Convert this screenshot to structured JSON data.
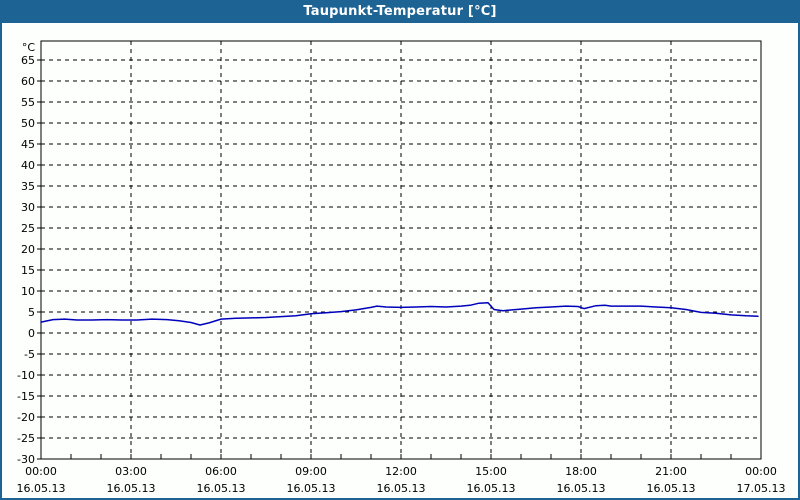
{
  "window": {
    "title": "Taupunkt-Temperatur [°C]"
  },
  "colors": {
    "header_bg": "#1d6394",
    "header_text": "#ffffff",
    "page_bg": "#fcfffc",
    "grid": "#000000",
    "line": "#0000bb"
  },
  "chart_data": {
    "type": "line",
    "title": "Taupunkt-Temperatur [°C]",
    "xlabel": "",
    "ylabel": "°C",
    "ylim": [
      -30,
      65
    ],
    "y_tick_step": 5,
    "y_ticks": [
      65,
      60,
      55,
      50,
      45,
      40,
      35,
      30,
      25,
      20,
      15,
      10,
      5,
      0,
      -5,
      -10,
      -15,
      -20,
      -25,
      -30
    ],
    "x_range_hours": [
      0,
      24
    ],
    "x_minor_step_hours": 1,
    "grid": "dashed",
    "legend_position": "none",
    "x_major_ticks": [
      {
        "hour": 0,
        "time": "00:00",
        "date": "16.05.13"
      },
      {
        "hour": 3,
        "time": "03:00",
        "date": "16.05.13"
      },
      {
        "hour": 6,
        "time": "06:00",
        "date": "16.05.13"
      },
      {
        "hour": 9,
        "time": "09:00",
        "date": "16.05.13"
      },
      {
        "hour": 12,
        "time": "12:00",
        "date": "16.05.13"
      },
      {
        "hour": 15,
        "time": "15:00",
        "date": "16.05.13"
      },
      {
        "hour": 18,
        "time": "18:00",
        "date": "16.05.13"
      },
      {
        "hour": 21,
        "time": "21:00",
        "date": "16.05.13"
      },
      {
        "hour": 24,
        "time": "00:00",
        "date": "17.05.13"
      }
    ],
    "series": [
      {
        "name": "Taupunkt-Temperatur",
        "unit": "°C",
        "color": "#0000bb",
        "points_hour_value": [
          [
            0.0,
            2.6
          ],
          [
            0.4,
            3.2
          ],
          [
            0.8,
            3.3
          ],
          [
            1.2,
            3.1
          ],
          [
            1.7,
            3.1
          ],
          [
            2.2,
            3.2
          ],
          [
            2.7,
            3.1
          ],
          [
            3.2,
            3.1
          ],
          [
            3.7,
            3.3
          ],
          [
            4.2,
            3.2
          ],
          [
            4.6,
            2.9
          ],
          [
            5.0,
            2.5
          ],
          [
            5.3,
            1.9
          ],
          [
            5.6,
            2.4
          ],
          [
            6.0,
            3.3
          ],
          [
            6.5,
            3.5
          ],
          [
            7.0,
            3.6
          ],
          [
            7.5,
            3.7
          ],
          [
            8.0,
            3.9
          ],
          [
            8.5,
            4.1
          ],
          [
            9.0,
            4.6
          ],
          [
            9.5,
            4.8
          ],
          [
            10.0,
            5.1
          ],
          [
            10.5,
            5.5
          ],
          [
            11.0,
            6.1
          ],
          [
            11.2,
            6.4
          ],
          [
            11.5,
            6.2
          ],
          [
            12.0,
            6.1
          ],
          [
            12.5,
            6.2
          ],
          [
            13.0,
            6.3
          ],
          [
            13.5,
            6.2
          ],
          [
            14.0,
            6.4
          ],
          [
            14.3,
            6.6
          ],
          [
            14.6,
            7.1
          ],
          [
            14.9,
            7.2
          ],
          [
            15.1,
            5.6
          ],
          [
            15.4,
            5.3
          ],
          [
            16.0,
            5.7
          ],
          [
            16.5,
            6.0
          ],
          [
            17.0,
            6.2
          ],
          [
            17.5,
            6.4
          ],
          [
            17.9,
            6.3
          ],
          [
            18.1,
            5.8
          ],
          [
            18.5,
            6.5
          ],
          [
            18.8,
            6.6
          ],
          [
            19.0,
            6.4
          ],
          [
            19.5,
            6.4
          ],
          [
            20.0,
            6.4
          ],
          [
            20.5,
            6.2
          ],
          [
            21.0,
            6.0
          ],
          [
            21.5,
            5.6
          ],
          [
            22.0,
            4.9
          ],
          [
            22.5,
            4.7
          ],
          [
            23.0,
            4.3
          ],
          [
            23.5,
            4.1
          ],
          [
            23.9,
            4.0
          ]
        ]
      }
    ]
  }
}
